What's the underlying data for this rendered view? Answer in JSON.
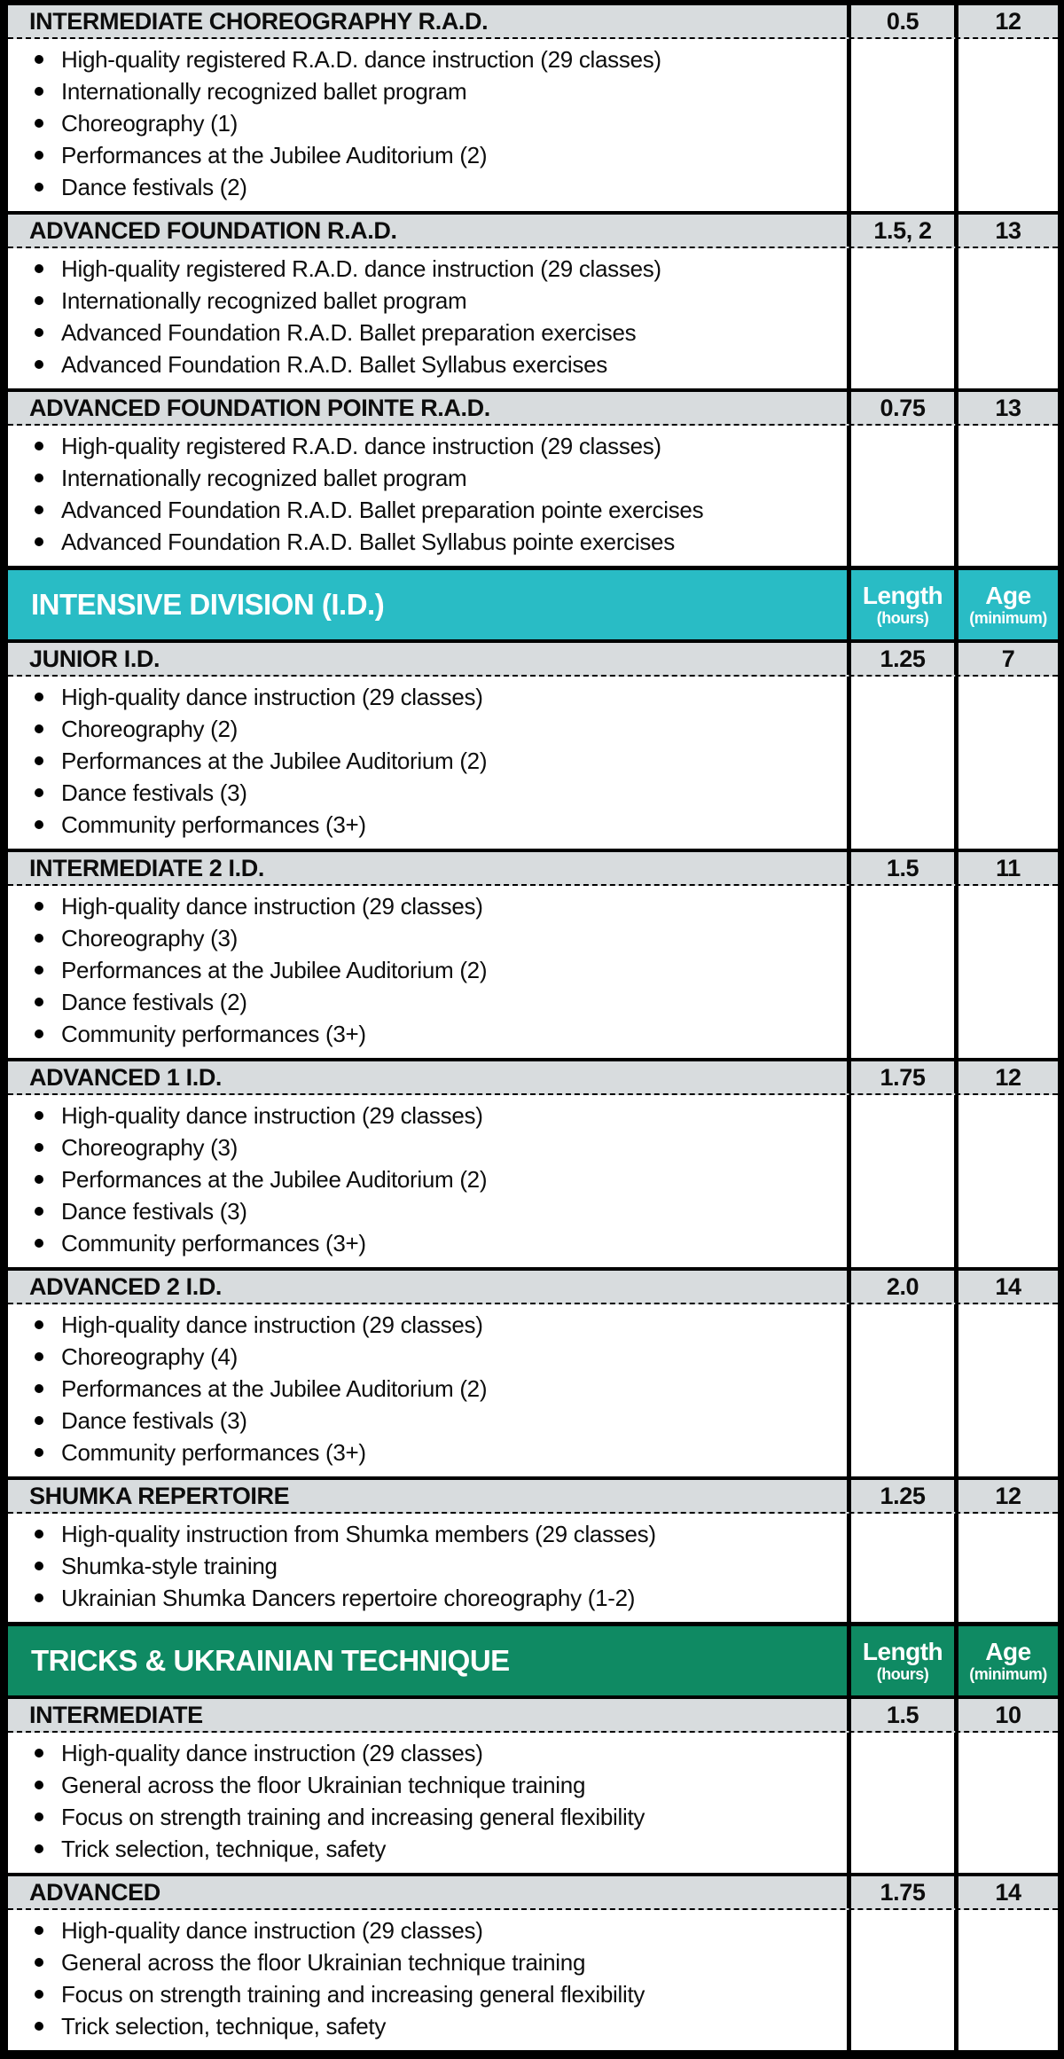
{
  "table": {
    "colors": {
      "teal": "#29BCC5",
      "green": "#0F8A63",
      "section_header_bg": "#D8DCDE",
      "border": "#000000"
    },
    "columns": {
      "length_label": "Length",
      "length_sub": "(hours)",
      "age_label": "Age",
      "age_sub": "(minimum)"
    },
    "groups": [
      {
        "title": null,
        "accent": null,
        "sections": [
          {
            "name": "INTERMEDIATE CHOREOGRAPHY R.A.D.",
            "length": "0.5",
            "age": "12",
            "features": [
              "High-quality registered R.A.D. dance instruction (29 classes)",
              "Internationally recognized ballet program",
              "Choreography (1)",
              "Performances at the Jubilee Auditorium (2)",
              "Dance festivals (2)"
            ]
          },
          {
            "name": "ADVANCED FOUNDATION R.A.D.",
            "length": "1.5, 2",
            "age": "13",
            "features": [
              "High-quality registered R.A.D. dance instruction (29 classes)",
              "Internationally recognized ballet program",
              "Advanced Foundation R.A.D. Ballet preparation exercises",
              "Advanced Foundation R.A.D. Ballet Syllabus exercises"
            ]
          },
          {
            "name": "ADVANCED FOUNDATION POINTE R.A.D.",
            "length": "0.75",
            "age": "13",
            "features": [
              "High-quality registered R.A.D. dance instruction (29 classes)",
              "Internationally recognized ballet program",
              "Advanced Foundation R.A.D. Ballet preparation pointe exercises",
              "Advanced Foundation  R.A.D. Ballet Syllabus pointe exercises"
            ]
          }
        ]
      },
      {
        "title": "INTENSIVE DIVISION (I.D.)",
        "accent": "teal",
        "sections": [
          {
            "name": "JUNIOR I.D.",
            "length": "1.25",
            "age": "7",
            "features": [
              "High-quality dance instruction (29 classes)",
              "Choreography (2)",
              "Performances at the Jubilee Auditorium (2)",
              "Dance festivals (3)",
              "Community performances (3+)"
            ]
          },
          {
            "name": "INTERMEDIATE 2 I.D.",
            "length": "1.5",
            "age": "11",
            "features": [
              "High-quality dance instruction (29 classes)",
              "Choreography (3)",
              "Performances at the Jubilee Auditorium (2)",
              "Dance festivals (2)",
              "Community performances (3+)"
            ]
          },
          {
            "name": "ADVANCED 1 I.D.",
            "length": "1.75",
            "age": "12",
            "features": [
              "High-quality dance instruction (29 classes)",
              "Choreography (3)",
              "Performances at the Jubilee Auditorium (2)",
              "Dance festivals (3)",
              "Community performances (3+)"
            ]
          },
          {
            "name": "ADVANCED 2 I.D.",
            "length": "2.0",
            "age": "14",
            "features": [
              "High-quality dance instruction (29 classes)",
              "Choreography (4)",
              "Performances at the Jubilee Auditorium (2)",
              "Dance festivals (3)",
              "Community performances (3+)"
            ]
          },
          {
            "name": "SHUMKA REPERTOIRE",
            "length": "1.25",
            "age": "12",
            "features": [
              "High-quality instruction from Shumka members (29 classes)",
              "Shumka-style training",
              "Ukrainian Shumka Dancers repertoire choreography (1-2)"
            ]
          }
        ]
      },
      {
        "title": "TRICKS & UKRAINIAN TECHNIQUE",
        "accent": "green",
        "sections": [
          {
            "name": "INTERMEDIATE",
            "length": "1.5",
            "age": "10",
            "features": [
              "High-quality dance instruction (29 classes)",
              "General across the floor Ukrainian technique training",
              "Focus on strength training and increasing general flexibility",
              "Trick selection, technique, safety"
            ]
          },
          {
            "name": "ADVANCED",
            "length": "1.75",
            "age": "14",
            "features": [
              "High-quality dance instruction (29 classes)",
              "General across the floor Ukrainian technique training",
              "Focus on strength training and increasing general flexibility",
              "Trick selection, technique, safety"
            ]
          }
        ]
      }
    ]
  }
}
